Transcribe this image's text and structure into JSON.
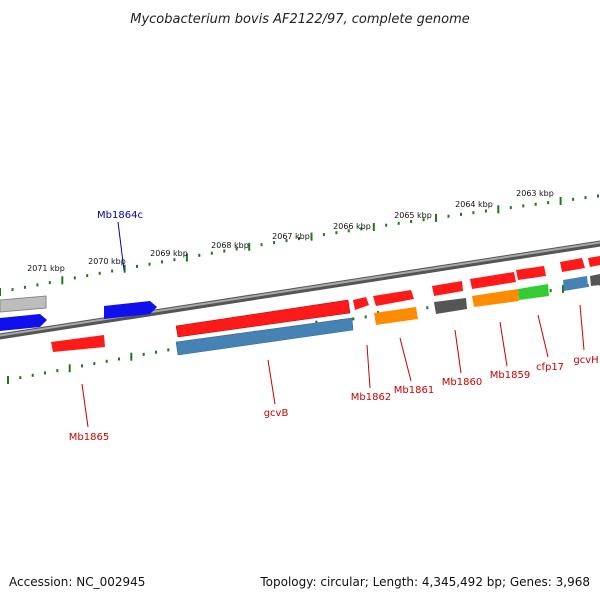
{
  "title": "Mycobacterium bovis AF2122/97, complete genome",
  "footer": {
    "accession": "Accession: NC_002945",
    "summary": "Topology: circular; Length: 4,345,492 bp; Genes: 3,968"
  },
  "scale_labels": [
    "2071 kbp",
    "2070 kbp",
    "2069 kbp",
    "2068 kbp",
    "2067 kbp",
    "2066 kbp",
    "2065 kbp",
    "2064 kbp",
    "2063 kbp"
  ],
  "gene_labels": [
    "Mb1864c",
    "Mb1865",
    "gcvB",
    "Mb1862",
    "Mb1861",
    "Mb1860",
    "Mb1859",
    "cfp17",
    "gcvH"
  ],
  "colors": {
    "forward_gene": "#ff0000",
    "reverse_gene": "#0000ff",
    "label_forward": "#cc0000",
    "label_reverse": "#0000aa",
    "backbone": "#777777",
    "ticks": "#1a7a1a",
    "cds_orange": "#ff8c00",
    "cds_steel": "#4682b4",
    "cds_green": "#33cc33",
    "cds_grey": "#555555"
  }
}
